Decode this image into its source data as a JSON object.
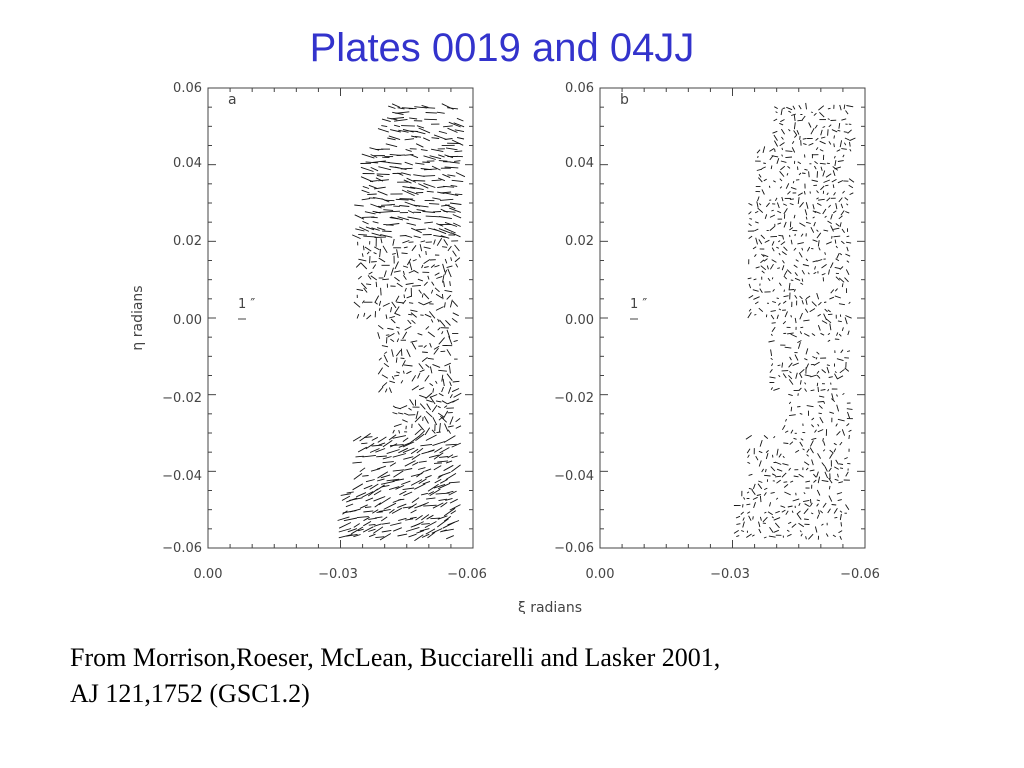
{
  "slide": {
    "title": "Plates 0019 and 04JJ",
    "caption_line1": "From Morrison,Roeser, McLean, Bucciarelli and Lasker 2001,",
    "caption_line2": "AJ 121,1752 (GSC1.2)"
  },
  "colors": {
    "title": "#3333cc",
    "axes": "#444444",
    "vectors": "#111111"
  },
  "chart_data": [
    {
      "type": "scatter",
      "panel_label": "a",
      "xlabel": "ξ  radians",
      "ylabel": "η  radians",
      "xlim": [
        0.0,
        -0.06
      ],
      "ylim": [
        -0.06,
        0.06
      ],
      "xticks": [
        "0.00",
        "−0.03",
        "−0.06"
      ],
      "yticks": [
        "0.06",
        "0.04",
        "0.02",
        "0.00",
        "−0.02",
        "−0.04",
        "−0.06"
      ],
      "scale_label": "1 ″",
      "note": "Field of plate residual vectors covering xi -0.031 to -0.057; long, aligned vectors at top (eta > 0.02) and bottom (eta < -0.03), short scattered vectors in the middle."
    },
    {
      "type": "scatter",
      "panel_label": "b",
      "xlabel": "ξ  radians",
      "ylabel": "η  radians",
      "xlim": [
        0.0,
        -0.06
      ],
      "ylim": [
        -0.06,
        0.06
      ],
      "xticks": [
        "0.00",
        "−0.03",
        "−0.06"
      ],
      "yticks": [
        "0.06",
        "0.04",
        "0.02",
        "0.00",
        "−0.02",
        "−0.04",
        "−0.06"
      ],
      "scale_label": "1 ″",
      "note": "Field of plate residual vectors covering xi -0.031 to -0.057; short, randomly oriented vectors throughout."
    }
  ]
}
